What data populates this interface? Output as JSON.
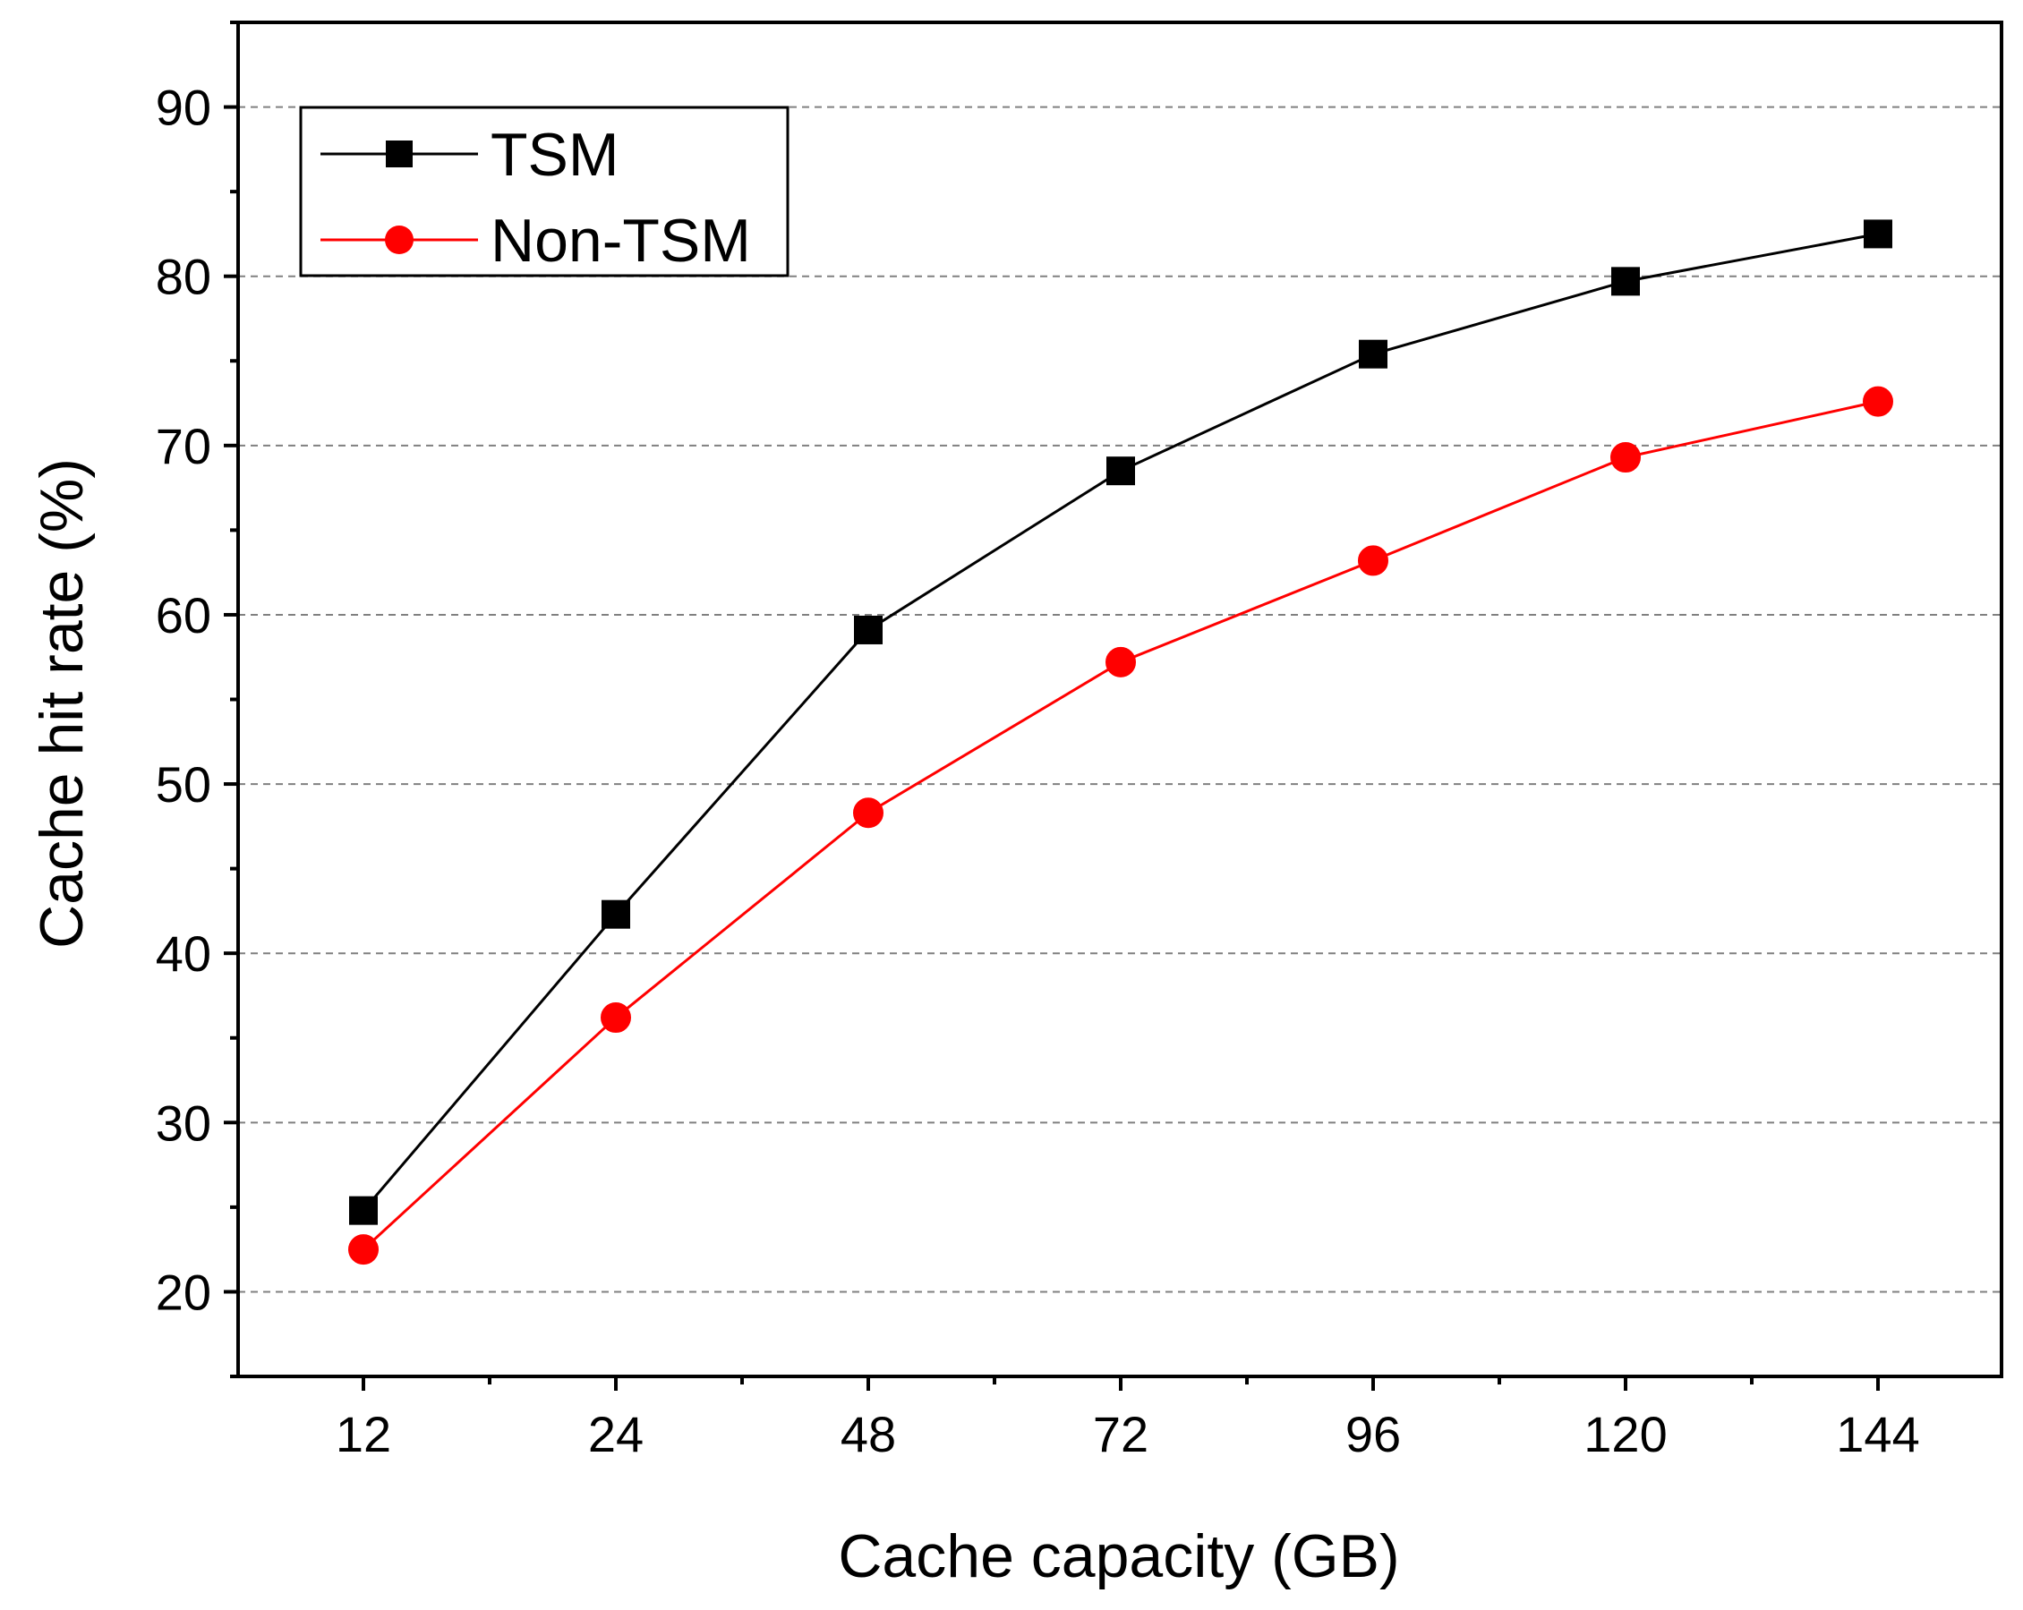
{
  "chart_data": {
    "type": "line",
    "title": "",
    "xlabel": "Cache capacity (GB)",
    "ylabel": "Cache hit rate (%)",
    "categories": [
      "12",
      "24",
      "48",
      "72",
      "96",
      "120",
      "144"
    ],
    "ylim": [
      15,
      95
    ],
    "yticks": [
      20,
      30,
      40,
      50,
      60,
      70,
      80,
      90
    ],
    "ytick_labels": [
      "20",
      "30",
      "40",
      "50",
      "60",
      "70",
      "80",
      "90"
    ],
    "grid": "horizontal dashed",
    "legend_position": "top-left",
    "series": [
      {
        "name": "TSM",
        "marker": "square",
        "color": "#000000",
        "values": [
          24.8,
          42.3,
          59.1,
          68.5,
          75.4,
          79.7,
          82.5
        ]
      },
      {
        "name": "Non-TSM",
        "marker": "circle",
        "color": "#ff0000",
        "values": [
          22.5,
          36.2,
          48.3,
          57.2,
          63.2,
          69.3,
          72.6
        ]
      }
    ]
  }
}
